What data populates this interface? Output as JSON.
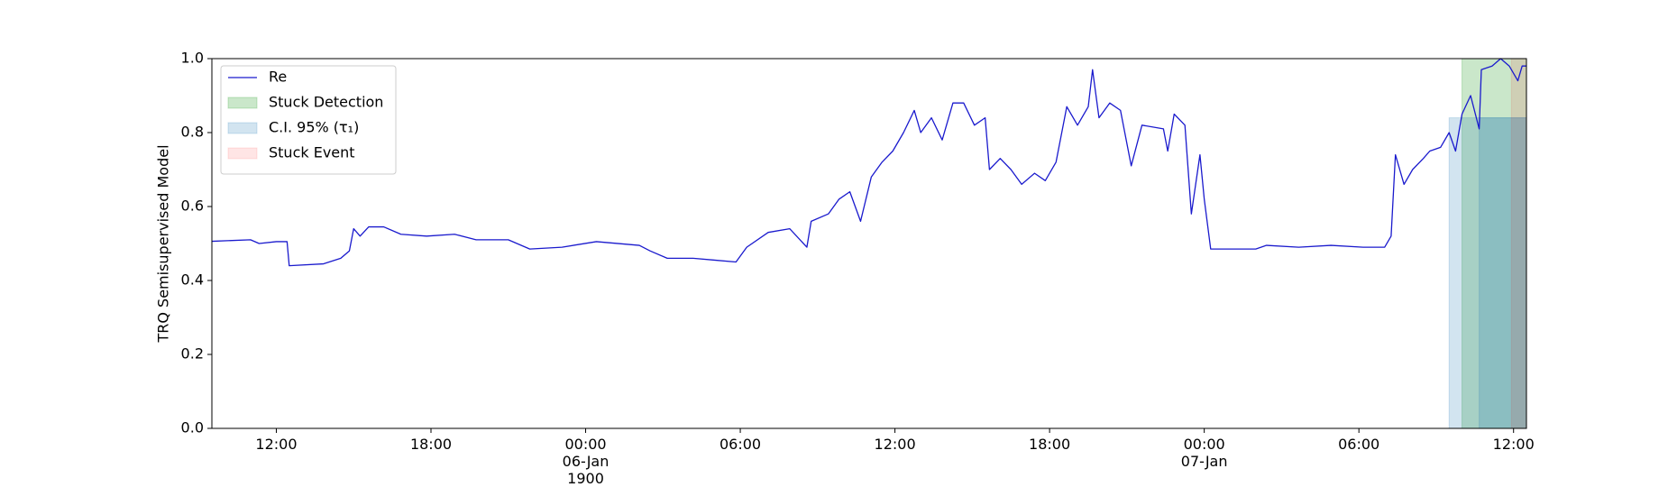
{
  "chart_data": {
    "type": "line",
    "y_label": "TRQ Semisupervised Model",
    "xlim": [
      "1900-01-05 09:30",
      "1900-01-07 12:30"
    ],
    "xticks": [
      {
        "value": "1900-01-05 12:00",
        "label": "12:00"
      },
      {
        "value": "1900-01-05 18:00",
        "label": "18:00"
      },
      {
        "value": "1900-01-06 00:00",
        "label": "00:00\n06-Jan\n1900"
      },
      {
        "value": "1900-01-06 06:00",
        "label": "06:00"
      },
      {
        "value": "1900-01-06 12:00",
        "label": "12:00"
      },
      {
        "value": "1900-01-06 18:00",
        "label": "18:00"
      },
      {
        "value": "1900-01-07 00:00",
        "label": "00:00\n07-Jan"
      },
      {
        "value": "1900-01-07 06:00",
        "label": "06:00"
      },
      {
        "value": "1900-01-07 12:00",
        "label": "12:00"
      }
    ],
    "ylim": [
      0,
      1
    ],
    "yticks": [
      {
        "value": 0,
        "label": "0.0"
      },
      0.2,
      0.4,
      0.6,
      0.8,
      {
        "value": 1,
        "label": "1.0"
      }
    ],
    "grid": false,
    "legend": "upper left",
    "series": [
      {
        "name": "Re",
        "color": "#1a1acd",
        "x": [
          "1900-01-05 09:30",
          "1900-01-05 11:00",
          "1900-01-05 11:20",
          "1900-01-05 12:00",
          "1900-01-05 12:25",
          "1900-01-05 12:30",
          "1900-01-05 13:50",
          "1900-01-05 14:30",
          "1900-01-05 14:50",
          "1900-01-05 15:00",
          "1900-01-05 15:15",
          "1900-01-05 15:35",
          "1900-01-05 16:10",
          "1900-01-05 16:50",
          "1900-01-05 17:50",
          "1900-01-05 18:55",
          "1900-01-05 19:45",
          "1900-01-05 21:00",
          "1900-01-05 21:50",
          "1900-01-05 23:05",
          "1900-01-06 00:25",
          "1900-01-06 02:05",
          "1900-01-06 02:30",
          "1900-01-06 03:10",
          "1900-01-06 04:10",
          "1900-01-06 05:00",
          "1900-01-06 05:50",
          "1900-01-06 06:15",
          "1900-01-06 07:05",
          "1900-01-06 07:55",
          "1900-01-06 08:35",
          "1900-01-06 08:45",
          "1900-01-06 09:25",
          "1900-01-06 09:50",
          "1900-01-06 10:15",
          "1900-01-06 10:40",
          "1900-01-06 11:05",
          "1900-01-06 11:30",
          "1900-01-06 11:55",
          "1900-01-06 12:20",
          "1900-01-06 12:45",
          "1900-01-06 13:00",
          "1900-01-06 13:25",
          "1900-01-06 13:50",
          "1900-01-06 14:15",
          "1900-01-06 14:40",
          "1900-01-06 15:05",
          "1900-01-06 15:30",
          "1900-01-06 15:40",
          "1900-01-06 16:05",
          "1900-01-06 16:30",
          "1900-01-06 16:55",
          "1900-01-06 17:25",
          "1900-01-06 17:50",
          "1900-01-06 18:15",
          "1900-01-06 18:40",
          "1900-01-06 19:05",
          "1900-01-06 19:30",
          "1900-01-06 19:40",
          "1900-01-06 19:55",
          "1900-01-06 20:20",
          "1900-01-06 20:45",
          "1900-01-06 21:10",
          "1900-01-06 21:35",
          "1900-01-06 22:25",
          "1900-01-06 22:35",
          "1900-01-06 22:50",
          "1900-01-06 23:15",
          "1900-01-06 23:30",
          "1900-01-06 23:50",
          "1900-01-07 00:00",
          "1900-01-07 00:15",
          "1900-01-07 02:00",
          "1900-01-07 02:25",
          "1900-01-07 03:40",
          "1900-01-07 04:55",
          "1900-01-07 06:10",
          "1900-01-07 07:00",
          "1900-01-07 07:15",
          "1900-01-07 07:25",
          "1900-01-07 07:45",
          "1900-01-07 08:05",
          "1900-01-07 08:30",
          "1900-01-07 08:45",
          "1900-01-07 09:10",
          "1900-01-07 09:30",
          "1900-01-07 09:45",
          "1900-01-07 10:00",
          "1900-01-07 10:20",
          "1900-01-07 10:40",
          "1900-01-07 10:45",
          "1900-01-07 11:10",
          "1900-01-07 11:30",
          "1900-01-07 11:50",
          "1900-01-07 12:10",
          "1900-01-07 12:20",
          "1900-01-07 12:30"
        ],
        "values": [
          0.506,
          0.51,
          0.5,
          0.505,
          0.505,
          0.44,
          0.445,
          0.46,
          0.48,
          0.54,
          0.52,
          0.545,
          0.545,
          0.525,
          0.52,
          0.525,
          0.51,
          0.51,
          0.485,
          0.49,
          0.505,
          0.495,
          0.48,
          0.46,
          0.46,
          0.455,
          0.45,
          0.49,
          0.53,
          0.54,
          0.49,
          0.56,
          0.58,
          0.62,
          0.64,
          0.56,
          0.68,
          0.72,
          0.75,
          0.8,
          0.86,
          0.8,
          0.84,
          0.78,
          0.88,
          0.88,
          0.82,
          0.84,
          0.7,
          0.73,
          0.7,
          0.66,
          0.69,
          0.67,
          0.72,
          0.87,
          0.82,
          0.87,
          0.97,
          0.84,
          0.88,
          0.86,
          0.71,
          0.82,
          0.81,
          0.75,
          0.85,
          0.82,
          0.58,
          0.74,
          0.62,
          0.485,
          0.485,
          0.495,
          0.49,
          0.495,
          0.49,
          0.49,
          0.52,
          0.74,
          0.66,
          0.7,
          0.73,
          0.75,
          0.76,
          0.8,
          0.75,
          0.85,
          0.9,
          0.81,
          0.97,
          0.98,
          1.0,
          0.98,
          0.94,
          0.98,
          0.98
        ]
      }
    ],
    "spans": [
      {
        "name": "Stuck Detection",
        "color": "#2ca02c",
        "alpha": 0.25,
        "regions": [
          {
            "x": [
              "1900-01-07 10:00",
              "1900-01-07 12:30"
            ],
            "y": [
              0,
              1
            ]
          }
        ]
      },
      {
        "name": "C.I. 95% (τ₁)",
        "color": "#1f77b4",
        "alpha": 0.2,
        "regions": [
          {
            "x": [
              "1900-01-07 09:30",
              "1900-01-07 12:30"
            ],
            "y": [
              0,
              0.84
            ]
          },
          {
            "x": [
              "1900-01-07 10:40",
              "1900-01-07 12:30"
            ],
            "y": [
              0,
              0.84
            ]
          }
        ]
      },
      {
        "name": "Stuck Event",
        "color": "#ff0000",
        "alpha": 0.1,
        "regions": [
          {
            "x": [
              "1900-01-07 11:55",
              "1900-01-07 12:30"
            ],
            "y": [
              0,
              1
            ]
          }
        ]
      }
    ]
  }
}
